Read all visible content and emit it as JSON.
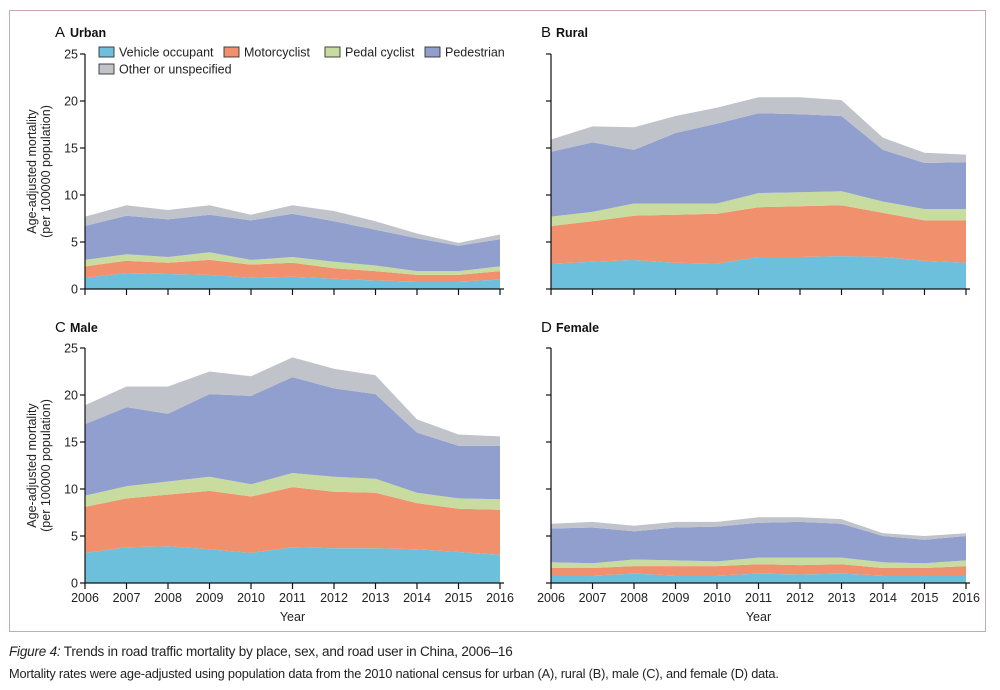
{
  "figure": {
    "label": "Figure 4:",
    "title": " Trends in road traffic mortality by place, sex, and road user in China, 2006–16",
    "caption": "Mortality rates were age-adjusted using population data from the 2010 national census for urban (A), rural (B), male (C), and female (D) data."
  },
  "legend": [
    {
      "name": "Vehicle occupant",
      "color": "#6dc0dc"
    },
    {
      "name": "Motorcyclist",
      "color": "#f0906c"
    },
    {
      "name": "Pedal cyclist",
      "color": "#c8dca0"
    },
    {
      "name": "Pedestrian",
      "color": "#919fce"
    },
    {
      "name": "Other or unspecified",
      "color": "#c0c4ca"
    }
  ],
  "chart_data": [
    {
      "type": "area",
      "stacked": true,
      "panel": "A",
      "title": "Urban",
      "xlabel": "",
      "ylabel": "Age-adjusted mortality (per 100000 population)",
      "ylim": [
        0,
        25
      ],
      "yticks": [
        0,
        5,
        10,
        15,
        20,
        25
      ],
      "show_y_tick_labels": true,
      "show_x_tick_labels": false,
      "legend": "top-left",
      "x": [
        2006,
        2007,
        2008,
        2009,
        2010,
        2011,
        2012,
        2013,
        2014,
        2015,
        2016
      ],
      "series": [
        {
          "name": "Vehicle occupant",
          "values": [
            1.2,
            1.7,
            1.6,
            1.5,
            1.2,
            1.3,
            1.1,
            0.9,
            0.8,
            0.8,
            1.0
          ]
        },
        {
          "name": "Motorcyclist",
          "values": [
            1.2,
            1.3,
            1.2,
            1.6,
            1.4,
            1.5,
            1.1,
            1.0,
            0.7,
            0.7,
            0.9
          ]
        },
        {
          "name": "Pedal cyclist",
          "values": [
            0.7,
            0.7,
            0.6,
            0.8,
            0.5,
            0.6,
            0.7,
            0.6,
            0.4,
            0.4,
            0.5
          ]
        },
        {
          "name": "Pedestrian",
          "values": [
            3.6,
            4.1,
            4.0,
            4.0,
            4.2,
            4.6,
            4.3,
            3.8,
            3.5,
            2.7,
            2.9
          ]
        },
        {
          "name": "Other or unspecified",
          "values": [
            1.0,
            1.1,
            1.0,
            1.0,
            0.6,
            0.9,
            1.1,
            0.9,
            0.5,
            0.3,
            0.5
          ]
        }
      ]
    },
    {
      "type": "area",
      "stacked": true,
      "panel": "B",
      "title": "Rural",
      "xlabel": "",
      "ylabel": "",
      "ylim": [
        0,
        25
      ],
      "yticks": [
        0,
        5,
        10,
        15,
        20,
        25
      ],
      "show_y_tick_labels": false,
      "show_x_tick_labels": false,
      "x": [
        2006,
        2007,
        2008,
        2009,
        2010,
        2011,
        2012,
        2013,
        2014,
        2015,
        2016
      ],
      "series": [
        {
          "name": "Vehicle occupant",
          "values": [
            2.7,
            2.9,
            3.1,
            2.8,
            2.7,
            3.4,
            3.4,
            3.5,
            3.4,
            3.0,
            2.8
          ]
        },
        {
          "name": "Motorcyclist",
          "values": [
            4.0,
            4.3,
            4.7,
            5.1,
            5.3,
            5.3,
            5.4,
            5.4,
            4.7,
            4.3,
            4.5
          ]
        },
        {
          "name": "Pedal cyclist",
          "values": [
            1.0,
            1.0,
            1.3,
            1.2,
            1.1,
            1.5,
            1.5,
            1.5,
            1.2,
            1.2,
            1.2
          ]
        },
        {
          "name": "Pedestrian",
          "values": [
            6.9,
            7.4,
            5.7,
            7.5,
            8.5,
            8.5,
            8.3,
            8.0,
            5.5,
            4.9,
            5.0
          ]
        },
        {
          "name": "Other or unspecified",
          "values": [
            1.3,
            1.7,
            2.4,
            1.8,
            1.7,
            1.7,
            1.8,
            1.7,
            1.3,
            1.1,
            0.8
          ]
        }
      ]
    },
    {
      "type": "area",
      "stacked": true,
      "panel": "C",
      "title": "Male",
      "xlabel": "Year",
      "ylabel": "Age-adjusted mortality (per 100000 population)",
      "ylim": [
        0,
        25
      ],
      "yticks": [
        0,
        5,
        10,
        15,
        20,
        25
      ],
      "show_y_tick_labels": true,
      "show_x_tick_labels": true,
      "x": [
        2006,
        2007,
        2008,
        2009,
        2010,
        2011,
        2012,
        2013,
        2014,
        2015,
        2016
      ],
      "series": [
        {
          "name": "Vehicle occupant",
          "values": [
            3.2,
            3.8,
            3.9,
            3.6,
            3.2,
            3.8,
            3.7,
            3.7,
            3.6,
            3.3,
            3.0
          ]
        },
        {
          "name": "Motorcyclist",
          "values": [
            4.9,
            5.2,
            5.5,
            6.2,
            6.0,
            6.4,
            6.0,
            5.9,
            4.9,
            4.6,
            4.8
          ]
        },
        {
          "name": "Pedal cyclist",
          "values": [
            1.2,
            1.3,
            1.4,
            1.5,
            1.3,
            1.5,
            1.6,
            1.5,
            1.1,
            1.1,
            1.1
          ]
        },
        {
          "name": "Pedestrian",
          "values": [
            7.6,
            8.4,
            7.2,
            8.8,
            9.4,
            10.2,
            9.4,
            9.0,
            6.4,
            5.6,
            5.7
          ]
        },
        {
          "name": "Other or unspecified",
          "values": [
            2.0,
            2.2,
            2.9,
            2.4,
            2.1,
            2.1,
            2.1,
            2.0,
            1.4,
            1.2,
            1.0
          ]
        }
      ]
    },
    {
      "type": "area",
      "stacked": true,
      "panel": "D",
      "title": "Female",
      "xlabel": "Year",
      "ylabel": "",
      "ylim": [
        0,
        25
      ],
      "yticks": [
        0,
        5,
        10,
        15,
        20,
        25
      ],
      "show_y_tick_labels": false,
      "show_x_tick_labels": true,
      "x": [
        2006,
        2007,
        2008,
        2009,
        2010,
        2011,
        2012,
        2013,
        2014,
        2015,
        2016
      ],
      "series": [
        {
          "name": "Vehicle occupant",
          "values": [
            0.8,
            0.8,
            1.0,
            0.8,
            0.8,
            1.0,
            0.9,
            1.0,
            0.8,
            0.8,
            0.8
          ]
        },
        {
          "name": "Motorcyclist",
          "values": [
            0.8,
            0.8,
            0.8,
            1.0,
            1.0,
            1.0,
            1.0,
            1.0,
            0.8,
            0.8,
            1.0
          ]
        },
        {
          "name": "Pedal cyclist",
          "values": [
            0.6,
            0.5,
            0.7,
            0.6,
            0.5,
            0.7,
            0.8,
            0.7,
            0.6,
            0.5,
            0.6
          ]
        },
        {
          "name": "Pedestrian",
          "values": [
            3.6,
            3.8,
            3.0,
            3.5,
            3.7,
            3.7,
            3.8,
            3.6,
            2.8,
            2.5,
            2.6
          ]
        },
        {
          "name": "Other or unspecified",
          "values": [
            0.5,
            0.6,
            0.6,
            0.6,
            0.5,
            0.6,
            0.5,
            0.5,
            0.3,
            0.4,
            0.3
          ]
        }
      ]
    }
  ]
}
